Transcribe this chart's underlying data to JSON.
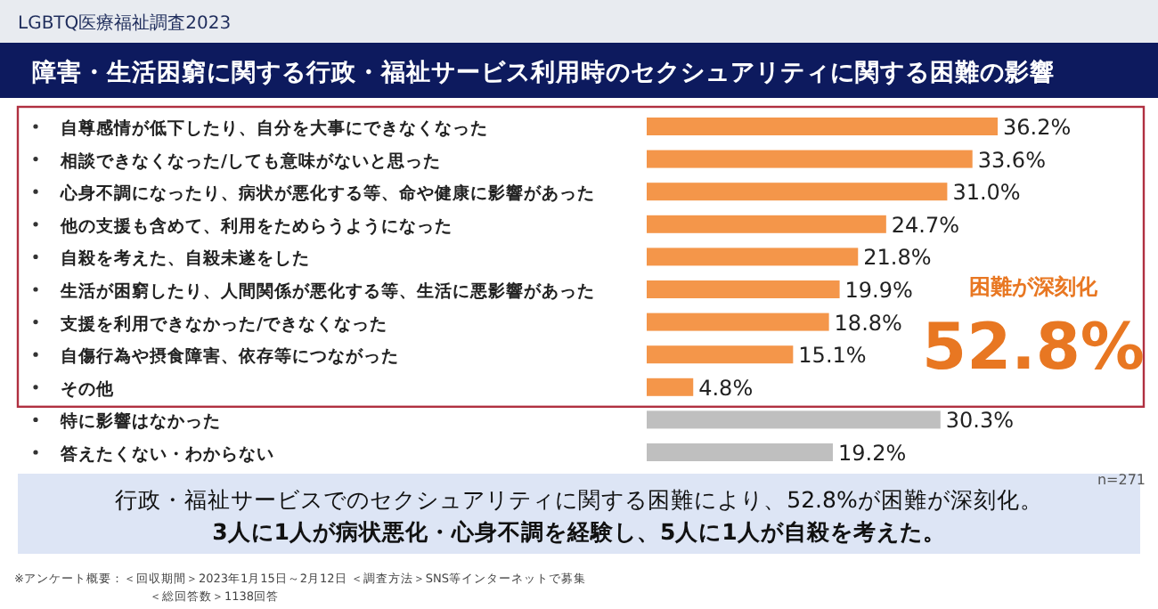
{
  "chart_data": {
    "type": "bar",
    "orientation": "horizontal",
    "subtitle": "LGBTQ医療福祉調査2023",
    "title": "障害・生活困窮に関する行政・福祉サービス利用時のセクシュアリティに関する困難の影響",
    "categories": [
      "自尊感情が低下したり、自分を大事にできなくなった",
      "相談できなくなった/しても意味がないと思った",
      "心身不調になったり、病状が悪化する等、命や健康に影響があった",
      "他の支援も含めて、利用をためらうようになった",
      "自殺を考えた、自殺未遂をした",
      "生活が困窮したり、人間関係が悪化する等、生活に悪影響があった",
      "支援を利用できなかった/できなくなった",
      "自傷行為や摂食障害、依存等につながった",
      "その他",
      "特に影響はなかった",
      "答えたくない・わからない"
    ],
    "values": [
      36.2,
      33.6,
      31.0,
      24.7,
      21.8,
      19.9,
      18.8,
      15.1,
      4.8,
      30.3,
      19.2
    ],
    "value_labels": [
      "36.2%",
      "33.6%",
      "31.0%",
      "24.7%",
      "21.8%",
      "19.9%",
      "18.8%",
      "15.1%",
      "4.8%",
      "30.3%",
      "19.2%"
    ],
    "colors": [
      "#f4964a",
      "#f4964a",
      "#f4964a",
      "#f4964a",
      "#f4964a",
      "#f4964a",
      "#f4964a",
      "#f4964a",
      "#f4964a",
      "#bfbfbf",
      "#bfbfbf"
    ],
    "annotations": [
      "困難が深刻化",
      "52.8%",
      "n=271",
      "行政・福祉サービスでのセクシュアリティに関する困難により、52.8%が困難が深刻化。",
      "3人に1人が病状悪化・心身不調を経験し、5人に1人が自殺を考えた。",
      "※アンケート概要：＜回収期間＞2023年1月15日～2月12日 ＜調査方法＞SNS等インターネットで募集",
      "＜総回答数＞1138回答"
    ]
  }
}
